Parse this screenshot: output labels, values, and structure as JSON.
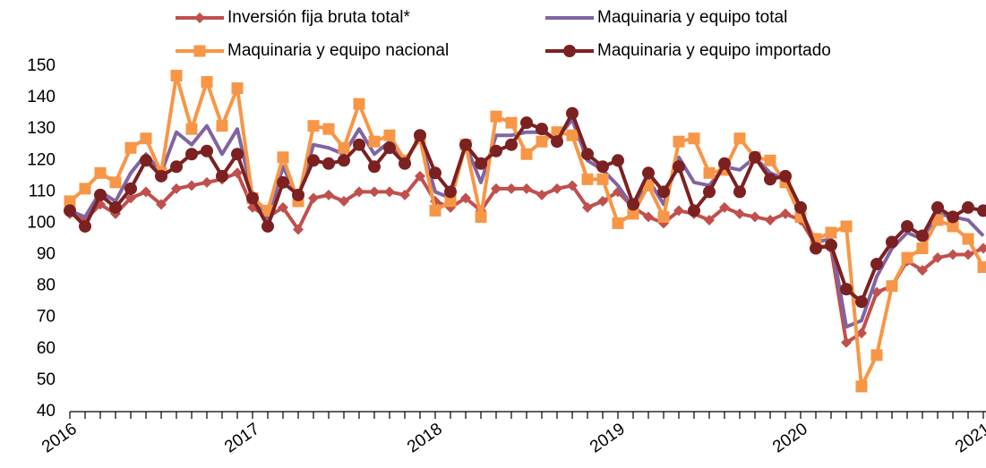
{
  "chart_data": {
    "type": "line",
    "categories": [
      "2016",
      null,
      null,
      null,
      null,
      null,
      null,
      null,
      null,
      null,
      null,
      null,
      "2017",
      null,
      null,
      null,
      null,
      null,
      null,
      null,
      null,
      null,
      null,
      null,
      "2018",
      null,
      null,
      null,
      null,
      null,
      null,
      null,
      null,
      null,
      null,
      null,
      "2019",
      null,
      null,
      null,
      null,
      null,
      null,
      null,
      null,
      null,
      null,
      null,
      "2020",
      null,
      null,
      null,
      null,
      null,
      null,
      null,
      null,
      null,
      null,
      null,
      "2021"
    ],
    "series": [
      {
        "name": "Inversión fija bruta total*",
        "color": "#c0504d",
        "marker": "diamond",
        "values": [
          103,
          101,
          106,
          103,
          108,
          110,
          106,
          111,
          112,
          113,
          114,
          116,
          105,
          102,
          105,
          98,
          108,
          109,
          107,
          110,
          110,
          110,
          109,
          115,
          107,
          105,
          108,
          104,
          111,
          111,
          111,
          109,
          111,
          112,
          105,
          107,
          110,
          105,
          102,
          100,
          104,
          103,
          101,
          105,
          103,
          102,
          101,
          103,
          101,
          93,
          92,
          62,
          65,
          78,
          80,
          88,
          85,
          89,
          90,
          90,
          92
        ]
      },
      {
        "name": "Maquinaria y equipo total",
        "color": "#8064a2",
        "marker": "none",
        "values": [
          104,
          102,
          110,
          107,
          116,
          122,
          116,
          129,
          125,
          131,
          122,
          130,
          109,
          101,
          118,
          108,
          125,
          124,
          122,
          130,
          122,
          126,
          120,
          127,
          110,
          108,
          125,
          113,
          128,
          128,
          129,
          129,
          127,
          133,
          120,
          117,
          112,
          105,
          114,
          106,
          121,
          113,
          112,
          118,
          117,
          121,
          116,
          114,
          104,
          94,
          95,
          67,
          69,
          83,
          92,
          97,
          95,
          103,
          102,
          101,
          96
        ]
      },
      {
        "name": "Maquinaria y equipo nacional",
        "color": "#f79646",
        "marker": "square",
        "values": [
          107,
          111,
          116,
          113,
          124,
          127,
          116,
          147,
          130,
          145,
          131,
          143,
          108,
          104,
          121,
          107,
          131,
          130,
          124,
          138,
          126,
          128,
          120,
          127,
          104,
          107,
          125,
          102,
          134,
          132,
          122,
          126,
          129,
          128,
          114,
          114,
          100,
          103,
          112,
          102,
          126,
          127,
          116,
          117,
          127,
          121,
          120,
          113,
          102,
          95,
          97,
          99,
          48,
          58,
          80,
          89,
          92,
          101,
          99,
          95,
          86
        ]
      },
      {
        "name": "Maquinaria y equipo importado",
        "color": "#7b2121",
        "marker": "circle",
        "values": [
          104,
          99,
          109,
          105,
          111,
          120,
          115,
          118,
          122,
          123,
          115,
          122,
          108,
          99,
          113,
          109,
          120,
          119,
          120,
          125,
          118,
          124,
          119,
          128,
          116,
          110,
          125,
          119,
          123,
          125,
          132,
          130,
          126,
          135,
          122,
          118,
          120,
          106,
          116,
          110,
          118,
          104,
          110,
          119,
          110,
          121,
          114,
          115,
          105,
          92,
          93,
          79,
          75,
          87,
          94,
          99,
          96,
          105,
          102,
          105,
          104
        ]
      }
    ],
    "ylim": [
      40,
      150
    ],
    "yticks": [
      40,
      50,
      60,
      70,
      80,
      90,
      100,
      110,
      120,
      130,
      140,
      150
    ],
    "grid": false,
    "legend": "top"
  }
}
